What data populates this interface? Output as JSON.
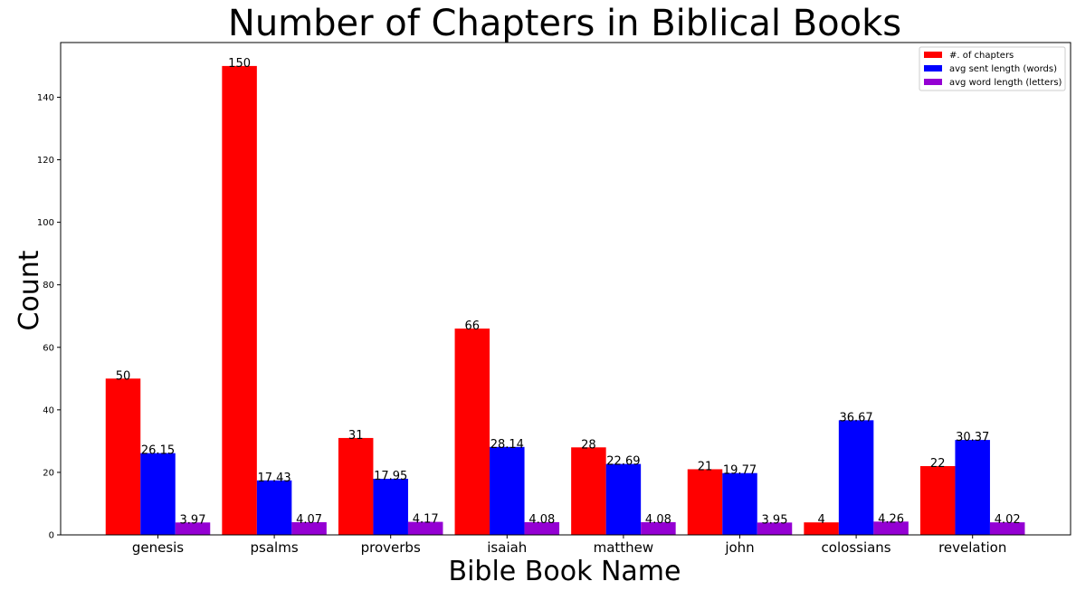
{
  "chart_data": {
    "type": "bar",
    "title": "Number of Chapters in Biblical Books",
    "xlabel": "Bible Book Name",
    "ylabel": "Count",
    "categories": [
      "genesis",
      "psalms",
      "proverbs",
      "isaiah",
      "matthew",
      "john",
      "colossians",
      "revelation"
    ],
    "ylim": [
      0,
      157.5
    ],
    "yticks": [
      0,
      20,
      40,
      60,
      80,
      100,
      120,
      140
    ],
    "grid": false,
    "legend_position": "top-right",
    "series": [
      {
        "name": "#. of chapters",
        "color": "#ff0000",
        "values": [
          50,
          150,
          31,
          66,
          28,
          21,
          4,
          22
        ],
        "labels": [
          "50",
          "150",
          "31",
          "66",
          "28",
          "21",
          "4",
          "22"
        ]
      },
      {
        "name": "avg sent length (words)",
        "color": "#0000ff",
        "values": [
          26.15,
          17.43,
          17.95,
          28.14,
          22.69,
          19.77,
          36.67,
          30.37
        ],
        "labels": [
          "26.15",
          "17.43",
          "17.95",
          "28.14",
          "22.69",
          "19.77",
          "36.67",
          "30.37"
        ]
      },
      {
        "name": "avg word length (letters)",
        "color": "#9400d3",
        "values": [
          3.97,
          4.07,
          4.17,
          4.08,
          4.08,
          3.95,
          4.26,
          4.02
        ],
        "labels": [
          "3.97",
          "4.07",
          "4.17",
          "4.08",
          "4.08",
          "3.95",
          "4.26",
          "4.02"
        ]
      }
    ]
  }
}
